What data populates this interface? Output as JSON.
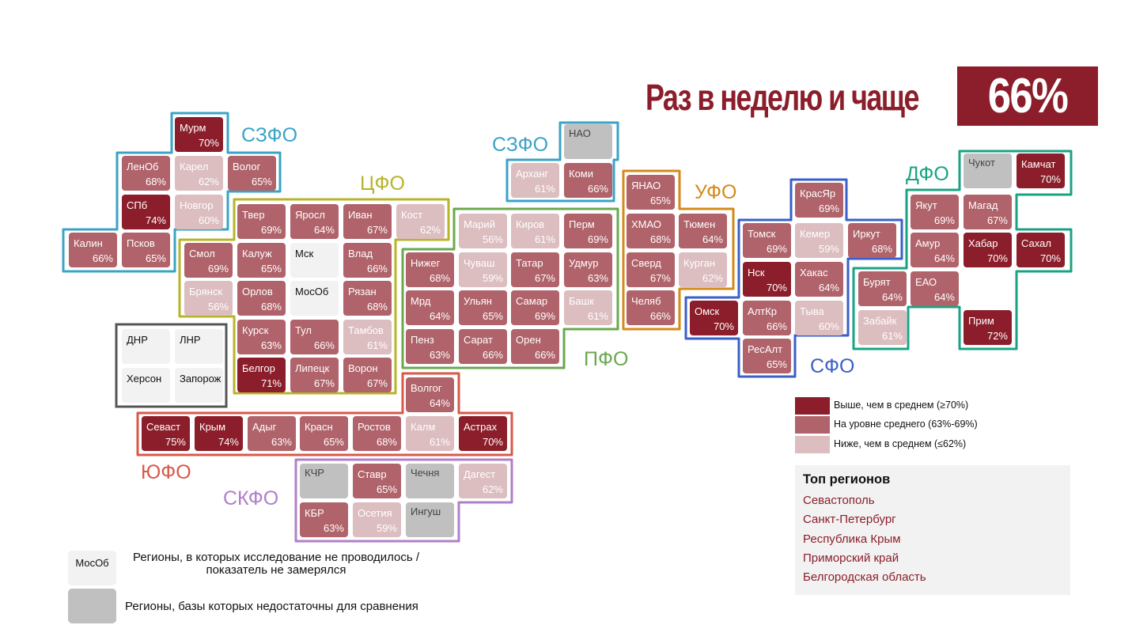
{
  "title": "Раз в неделю и чаще",
  "total_value": "66%",
  "colors": {
    "high": "#8b1e2a",
    "mid": "#b0636a",
    "low": "#dcbdc0",
    "no_data": "#f2f2f2",
    "insufficient": "#c0c0c0"
  },
  "chart_data": {
    "type": "tile-map",
    "metric": "Раз в неделю и чаще",
    "overall": 66,
    "unit": "%",
    "regions": [
      {
        "name": "Мурм",
        "value": 70,
        "cls": "high"
      },
      {
        "name": "ЛенОб",
        "value": 68,
        "cls": "mid"
      },
      {
        "name": "Карел",
        "value": 62,
        "cls": "low"
      },
      {
        "name": "Волог",
        "value": 65,
        "cls": "mid"
      },
      {
        "name": "СПб",
        "value": 74,
        "cls": "high"
      },
      {
        "name": "Новгор",
        "value": 60,
        "cls": "low"
      },
      {
        "name": "Калин",
        "value": 66,
        "cls": "mid"
      },
      {
        "name": "Псков",
        "value": 65,
        "cls": "mid"
      },
      {
        "name": "Твер",
        "value": 69,
        "cls": "mid"
      },
      {
        "name": "Яросл",
        "value": 64,
        "cls": "mid"
      },
      {
        "name": "Иван",
        "value": 67,
        "cls": "mid"
      },
      {
        "name": "Кост",
        "value": 62,
        "cls": "low"
      },
      {
        "name": "Смол",
        "value": 69,
        "cls": "mid"
      },
      {
        "name": "Калуж",
        "value": 65,
        "cls": "mid"
      },
      {
        "name": "Мск",
        "value": null,
        "cls": "no_data"
      },
      {
        "name": "Влад",
        "value": 66,
        "cls": "mid"
      },
      {
        "name": "Брянск",
        "value": 56,
        "cls": "low"
      },
      {
        "name": "Орлов",
        "value": 68,
        "cls": "mid"
      },
      {
        "name": "МосОб",
        "value": null,
        "cls": "no_data"
      },
      {
        "name": "Рязан",
        "value": 68,
        "cls": "mid"
      },
      {
        "name": "Курск",
        "value": 63,
        "cls": "mid"
      },
      {
        "name": "Тул",
        "value": 66,
        "cls": "mid"
      },
      {
        "name": "Тамбов",
        "value": 61,
        "cls": "low"
      },
      {
        "name": "Белгор",
        "value": 71,
        "cls": "high"
      },
      {
        "name": "Липецк",
        "value": 67,
        "cls": "mid"
      },
      {
        "name": "Ворон",
        "value": 67,
        "cls": "mid"
      },
      {
        "name": "ДНР",
        "value": null,
        "cls": "no_data"
      },
      {
        "name": "ЛНР",
        "value": null,
        "cls": "no_data"
      },
      {
        "name": "Херсон",
        "value": null,
        "cls": "no_data"
      },
      {
        "name": "Запорож",
        "value": null,
        "cls": "no_data"
      },
      {
        "name": "НАО",
        "value": null,
        "cls": "insufficient"
      },
      {
        "name": "Арханг",
        "value": 61,
        "cls": "low"
      },
      {
        "name": "Коми",
        "value": 66,
        "cls": "mid"
      },
      {
        "name": "Марий",
        "value": 56,
        "cls": "low"
      },
      {
        "name": "Киров",
        "value": 61,
        "cls": "low"
      },
      {
        "name": "Перм",
        "value": 69,
        "cls": "mid"
      },
      {
        "name": "Нижег",
        "value": 68,
        "cls": "mid"
      },
      {
        "name": "Чуваш",
        "value": 59,
        "cls": "low"
      },
      {
        "name": "Татар",
        "value": 67,
        "cls": "mid"
      },
      {
        "name": "Удмур",
        "value": 63,
        "cls": "mid"
      },
      {
        "name": "Мрд",
        "value": 64,
        "cls": "mid"
      },
      {
        "name": "Ульян",
        "value": 65,
        "cls": "mid"
      },
      {
        "name": "Самар",
        "value": 69,
        "cls": "mid"
      },
      {
        "name": "Башк",
        "value": 61,
        "cls": "low"
      },
      {
        "name": "Пенз",
        "value": 63,
        "cls": "mid"
      },
      {
        "name": "Сарат",
        "value": 66,
        "cls": "mid"
      },
      {
        "name": "Орен",
        "value": 66,
        "cls": "mid"
      },
      {
        "name": "ЯНАО",
        "value": 65,
        "cls": "mid"
      },
      {
        "name": "ХМАО",
        "value": 68,
        "cls": "mid"
      },
      {
        "name": "Тюмен",
        "value": 64,
        "cls": "mid"
      },
      {
        "name": "Сверд",
        "value": 67,
        "cls": "mid"
      },
      {
        "name": "Курган",
        "value": 62,
        "cls": "low"
      },
      {
        "name": "Челяб",
        "value": 66,
        "cls": "mid"
      },
      {
        "name": "КрасЯр",
        "value": 69,
        "cls": "mid"
      },
      {
        "name": "Томск",
        "value": 69,
        "cls": "mid"
      },
      {
        "name": "Кемер",
        "value": 59,
        "cls": "low"
      },
      {
        "name": "Иркут",
        "value": 68,
        "cls": "mid"
      },
      {
        "name": "Нск",
        "value": 70,
        "cls": "high"
      },
      {
        "name": "Хакас",
        "value": 64,
        "cls": "mid"
      },
      {
        "name": "Омск",
        "value": 70,
        "cls": "high"
      },
      {
        "name": "АлтКр",
        "value": 66,
        "cls": "mid"
      },
      {
        "name": "Тыва",
        "value": 60,
        "cls": "low"
      },
      {
        "name": "РесАлт",
        "value": 65,
        "cls": "mid"
      },
      {
        "name": "Чукот",
        "value": null,
        "cls": "insufficient"
      },
      {
        "name": "Камчат",
        "value": 70,
        "cls": "high"
      },
      {
        "name": "Якут",
        "value": 69,
        "cls": "mid"
      },
      {
        "name": "Магад",
        "value": 67,
        "cls": "mid"
      },
      {
        "name": "Амур",
        "value": 64,
        "cls": "mid"
      },
      {
        "name": "Хабар",
        "value": 70,
        "cls": "high"
      },
      {
        "name": "Сахал",
        "value": 70,
        "cls": "high"
      },
      {
        "name": "Бурят",
        "value": 64,
        "cls": "mid"
      },
      {
        "name": "ЕАО",
        "value": 64,
        "cls": "mid"
      },
      {
        "name": "Забайк",
        "value": 61,
        "cls": "low"
      },
      {
        "name": "Прим",
        "value": 72,
        "cls": "high"
      },
      {
        "name": "Волгог",
        "value": 64,
        "cls": "mid"
      },
      {
        "name": "Севаст",
        "value": 75,
        "cls": "high"
      },
      {
        "name": "Крым",
        "value": 74,
        "cls": "high"
      },
      {
        "name": "Адыг",
        "value": 63,
        "cls": "mid"
      },
      {
        "name": "Красн",
        "value": 65,
        "cls": "mid"
      },
      {
        "name": "Ростов",
        "value": 68,
        "cls": "mid"
      },
      {
        "name": "Калм",
        "value": 61,
        "cls": "low"
      },
      {
        "name": "Астрах",
        "value": 70,
        "cls": "high"
      },
      {
        "name": "КЧР",
        "value": null,
        "cls": "insufficient"
      },
      {
        "name": "Ставр",
        "value": 65,
        "cls": "mid"
      },
      {
        "name": "Чечня",
        "value": null,
        "cls": "insufficient"
      },
      {
        "name": "Дагест",
        "value": 62,
        "cls": "low"
      },
      {
        "name": "КБР",
        "value": 63,
        "cls": "mid"
      },
      {
        "name": "Осетия",
        "value": 59,
        "cls": "low"
      },
      {
        "name": "Ингуш",
        "value": null,
        "cls": "insufficient"
      }
    ],
    "districts": [
      {
        "name": "СЗФО",
        "color": "#3ba3c6"
      },
      {
        "name": "СЗФО",
        "color": "#3ba3c6"
      },
      {
        "name": "ЦФО",
        "color": "#b7b429"
      },
      {
        "name": "ПФО",
        "color": "#6aa84f"
      },
      {
        "name": "УФО",
        "color": "#d48a1a"
      },
      {
        "name": "СФО",
        "color": "#3a5fc8"
      },
      {
        "name": "ДФО",
        "color": "#1aa383"
      },
      {
        "name": "ЮФО",
        "color": "#d8584a"
      },
      {
        "name": "СКФО",
        "color": "#b07fc9"
      }
    ]
  },
  "legend": [
    {
      "label": "Выше, чем в среднем (≥70%)",
      "color": "#8b1e2a"
    },
    {
      "label": "На уровне среднего (63%-69%)",
      "color": "#b0636a"
    },
    {
      "label": "Ниже, чем в среднем (≤62%)",
      "color": "#dcbdc0"
    }
  ],
  "top_regions": {
    "title": "Топ регионов",
    "items": [
      "Севастополь",
      "Санкт-Петербург",
      "Республика Крым",
      "Приморский край",
      "Белгородская область"
    ]
  },
  "notes": {
    "no_data_sample": "МосОб",
    "no_data_text": "Регионы, в которых исследование не проводилось / показатель не замерялся",
    "insufficient_text": "Регионы, базы которых недостаточны для сравнения"
  }
}
